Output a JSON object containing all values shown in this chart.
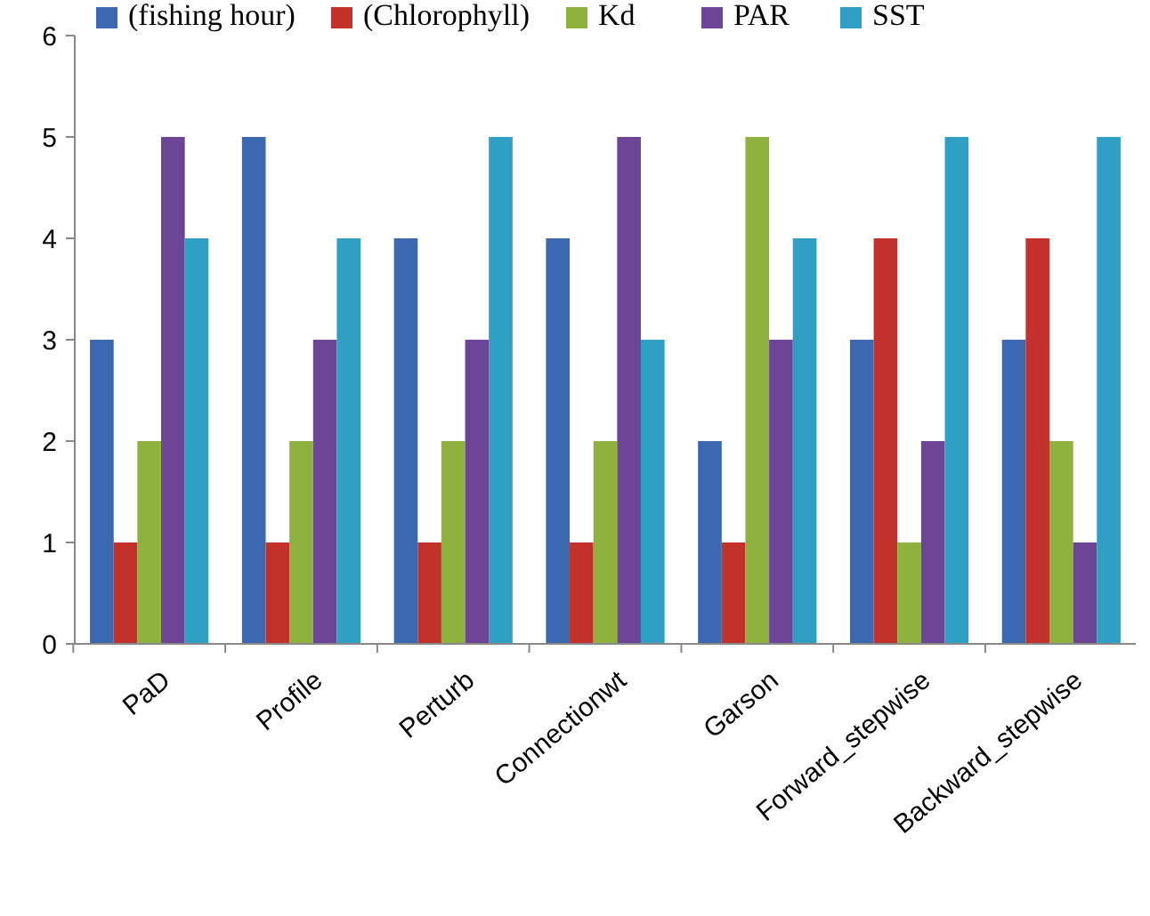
{
  "chart_data": {
    "type": "bar",
    "categories": [
      "PaD",
      "Profile",
      "Perturb",
      "Connectionwt",
      "Garson",
      "Forward_stepwise",
      "Backward_stepwise"
    ],
    "series": [
      {
        "name": "(fishing hour)",
        "color": "#3b68b1",
        "values": [
          3,
          5,
          4,
          4,
          2,
          3,
          3
        ]
      },
      {
        "name": "(Chlorophyll)",
        "color": "#c3312d",
        "values": [
          1,
          1,
          1,
          1,
          1,
          4,
          4
        ]
      },
      {
        "name": "Kd",
        "color": "#8fb23f",
        "values": [
          2,
          2,
          2,
          2,
          5,
          1,
          2
        ]
      },
      {
        "name": "PAR",
        "color": "#6d4597",
        "values": [
          5,
          3,
          3,
          5,
          3,
          2,
          1
        ]
      },
      {
        "name": "SST",
        "color": "#2fa0c3",
        "values": [
          4,
          4,
          5,
          3,
          4,
          5,
          5
        ]
      }
    ],
    "ylim": [
      0,
      6
    ],
    "yticks": [
      0,
      1,
      2,
      3,
      4,
      5,
      6
    ],
    "grid": false,
    "legend": "top"
  }
}
